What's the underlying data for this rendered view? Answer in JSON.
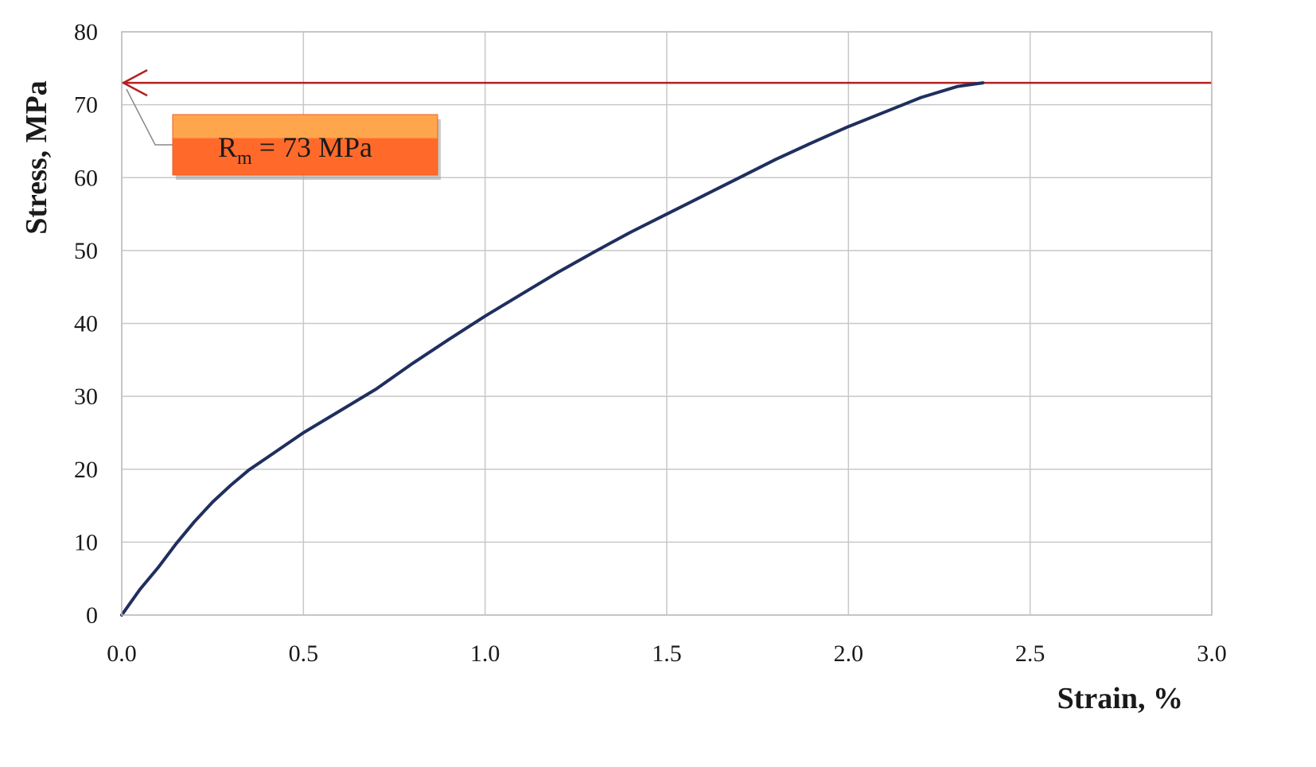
{
  "chart_data": {
    "type": "line",
    "xlabel": "Strain, %",
    "ylabel": "Stress, MPa",
    "xlim": [
      0,
      3
    ],
    "ylim": [
      0,
      80
    ],
    "x_ticks": [
      "0.0",
      "0.5",
      "1.0",
      "1.5",
      "2.0",
      "2.5",
      "3.0"
    ],
    "y_ticks": [
      "0",
      "10",
      "20",
      "30",
      "40",
      "50",
      "60",
      "70",
      "80"
    ],
    "grid": true,
    "series": [
      {
        "color": "#1f2f5e",
        "points": [
          [
            0.0,
            0.0
          ],
          [
            0.05,
            3.5
          ],
          [
            0.1,
            6.5
          ],
          [
            0.15,
            9.8
          ],
          [
            0.2,
            12.8
          ],
          [
            0.25,
            15.5
          ],
          [
            0.3,
            17.8
          ],
          [
            0.35,
            19.9
          ],
          [
            0.4,
            21.6
          ],
          [
            0.45,
            23.3
          ],
          [
            0.5,
            25.0
          ],
          [
            0.6,
            28.0
          ],
          [
            0.7,
            31.0
          ],
          [
            0.8,
            34.5
          ],
          [
            0.9,
            37.8
          ],
          [
            1.0,
            41.0
          ],
          [
            1.1,
            44.0
          ],
          [
            1.2,
            47.0
          ],
          [
            1.3,
            49.8
          ],
          [
            1.4,
            52.5
          ],
          [
            1.5,
            55.0
          ],
          [
            1.6,
            57.5
          ],
          [
            1.7,
            60.0
          ],
          [
            1.8,
            62.5
          ],
          [
            1.9,
            64.8
          ],
          [
            2.0,
            67.0
          ],
          [
            2.1,
            69.0
          ],
          [
            2.2,
            71.0
          ],
          [
            2.3,
            72.5
          ],
          [
            2.37,
            73.0
          ]
        ]
      }
    ],
    "reference_line": {
      "y": 73,
      "color": "#b22222"
    },
    "annotation": {
      "text_main": "R",
      "text_sub": "m",
      "text_rest": " = 73 MPa",
      "box_color": "#ff6a2b",
      "box_color_top": "#ffa64d",
      "leader_color": "#888888",
      "points_to": [
        0,
        73
      ]
    }
  }
}
